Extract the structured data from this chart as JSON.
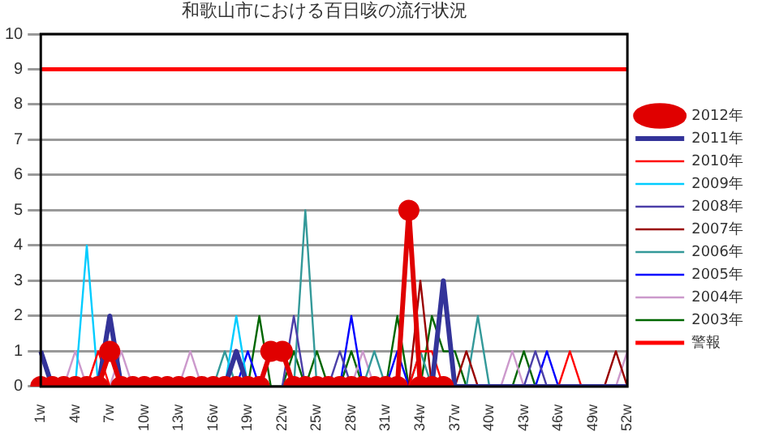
{
  "chart_data": {
    "type": "line",
    "title": "和歌山市における百日咳の流行状況",
    "categories": [
      "1w",
      null,
      null,
      "4w",
      null,
      null,
      "7w",
      null,
      null,
      "10w",
      null,
      null,
      "13w",
      null,
      null,
      "16w",
      null,
      null,
      "19w",
      null,
      null,
      "22w",
      null,
      null,
      "25w",
      null,
      null,
      "28w",
      null,
      null,
      "31w",
      null,
      null,
      "34w",
      null,
      null,
      "37w",
      null,
      null,
      "40w",
      null,
      null,
      "43w",
      null,
      null,
      "46w",
      null,
      null,
      "49w",
      null,
      null,
      "52w"
    ],
    "series": [
      {
        "name": "2012年",
        "color": "#e00000",
        "marker": "circle",
        "values": [
          0,
          0,
          0,
          0,
          0,
          0,
          1,
          0,
          0,
          0,
          0,
          0,
          0,
          0,
          0,
          0,
          0,
          0,
          0,
          0,
          1,
          1,
          0,
          0,
          0,
          0,
          0,
          0,
          0,
          0,
          0,
          0,
          5,
          0,
          0,
          0,
          null,
          null,
          null,
          null,
          null,
          null,
          null,
          null,
          null,
          null,
          null,
          null,
          null,
          null,
          null,
          null
        ]
      },
      {
        "name": "2011年",
        "color": "#333399",
        "values": [
          1,
          0,
          null,
          null,
          null,
          0,
          2,
          0,
          null,
          null,
          null,
          null,
          null,
          null,
          null,
          null,
          0,
          1,
          0,
          null,
          null,
          null,
          null,
          null,
          null,
          null,
          null,
          null,
          null,
          null,
          null,
          null,
          null,
          null,
          0,
          3,
          0,
          0,
          0,
          0,
          0,
          0,
          0,
          0,
          0,
          0,
          0,
          0,
          0,
          0,
          0,
          0
        ]
      },
      {
        "name": "2010年",
        "color": "#ff0000",
        "values": [
          null,
          null,
          null,
          null,
          0,
          1,
          0,
          null,
          null,
          null,
          null,
          null,
          null,
          null,
          null,
          null,
          null,
          null,
          null,
          null,
          null,
          null,
          null,
          null,
          null,
          null,
          null,
          null,
          null,
          null,
          null,
          null,
          0,
          1,
          1,
          0,
          null,
          null,
          null,
          null,
          null,
          null,
          null,
          null,
          null,
          0,
          1,
          0,
          null,
          null,
          null,
          null
        ]
      },
      {
        "name": "2009年",
        "color": "#00ccff",
        "values": [
          null,
          null,
          null,
          0,
          4,
          0,
          null,
          null,
          null,
          null,
          null,
          null,
          null,
          null,
          null,
          null,
          0,
          2,
          0,
          null,
          null,
          null,
          null,
          null,
          null,
          null,
          null,
          null,
          null,
          null,
          null,
          null,
          null,
          null,
          null,
          null,
          null,
          null,
          null,
          null,
          null,
          null,
          null,
          null,
          null,
          null,
          null,
          null,
          null,
          null,
          null,
          null
        ]
      },
      {
        "name": "2008年",
        "color": "#4b3fa8",
        "values": [
          null,
          null,
          null,
          null,
          null,
          null,
          null,
          null,
          null,
          null,
          null,
          null,
          null,
          null,
          null,
          null,
          null,
          null,
          null,
          null,
          null,
          0,
          2,
          0,
          null,
          0,
          1,
          0,
          null,
          null,
          null,
          null,
          null,
          null,
          null,
          null,
          null,
          null,
          null,
          null,
          null,
          null,
          0,
          1,
          0,
          null,
          null,
          null,
          null,
          null,
          null,
          null
        ]
      },
      {
        "name": "2007年",
        "color": "#990000",
        "values": [
          null,
          null,
          null,
          null,
          null,
          null,
          null,
          null,
          null,
          null,
          null,
          null,
          null,
          null,
          null,
          null,
          null,
          null,
          null,
          null,
          null,
          null,
          null,
          null,
          null,
          null,
          null,
          null,
          null,
          null,
          null,
          null,
          0,
          3,
          0,
          null,
          0,
          1,
          0,
          null,
          null,
          null,
          null,
          null,
          null,
          null,
          null,
          null,
          null,
          0,
          1,
          0
        ]
      },
      {
        "name": "2006年",
        "color": "#339999",
        "values": [
          null,
          null,
          null,
          null,
          null,
          null,
          null,
          null,
          null,
          null,
          null,
          null,
          null,
          null,
          null,
          0,
          1,
          0,
          null,
          null,
          null,
          null,
          0,
          5,
          0,
          null,
          null,
          null,
          0,
          1,
          0,
          null,
          0,
          1,
          0,
          null,
          null,
          0,
          2,
          0,
          null,
          null,
          null,
          null,
          null,
          null,
          null,
          null,
          null,
          null,
          null,
          null
        ]
      },
      {
        "name": "2005年",
        "color": "#0000ff",
        "values": [
          null,
          null,
          null,
          null,
          null,
          null,
          null,
          null,
          null,
          null,
          null,
          null,
          null,
          null,
          null,
          null,
          null,
          0,
          1,
          0,
          null,
          null,
          null,
          null,
          null,
          null,
          0,
          2,
          0,
          null,
          0,
          1,
          0,
          null,
          null,
          null,
          null,
          null,
          null,
          null,
          null,
          null,
          null,
          0,
          1,
          0,
          null,
          null,
          null,
          null,
          null,
          null
        ]
      },
      {
        "name": "2004年",
        "color": "#cc99cc",
        "values": [
          null,
          null,
          0,
          1,
          0,
          null,
          0,
          1,
          0,
          null,
          null,
          null,
          0,
          1,
          0,
          null,
          null,
          null,
          null,
          null,
          null,
          null,
          null,
          null,
          null,
          null,
          null,
          0,
          1,
          0,
          null,
          null,
          null,
          null,
          null,
          null,
          null,
          null,
          null,
          null,
          0,
          1,
          0,
          null,
          null,
          null,
          null,
          null,
          null,
          null,
          0,
          1
        ]
      },
      {
        "name": "2003年",
        "color": "#006600",
        "values": [
          null,
          null,
          null,
          null,
          null,
          null,
          null,
          null,
          null,
          null,
          null,
          null,
          null,
          null,
          null,
          null,
          null,
          null,
          0,
          2,
          0,
          0,
          1,
          0,
          1,
          0,
          0,
          1,
          0,
          null,
          0,
          2,
          0,
          0,
          2,
          1,
          1,
          0,
          null,
          null,
          null,
          0,
          1,
          0,
          null,
          null,
          null,
          null,
          null,
          null,
          null,
          null
        ]
      }
    ],
    "ref_lines": [
      {
        "axis": "y",
        "value": 9,
        "label": "警報",
        "color": "#ff0000"
      }
    ],
    "ylim": [
      0,
      10
    ],
    "yticks": [
      0,
      1,
      2,
      3,
      4,
      5,
      6,
      7,
      8,
      9,
      10
    ],
    "grid": "y",
    "legend": "right",
    "marker": "none",
    "line_style": "solid"
  }
}
